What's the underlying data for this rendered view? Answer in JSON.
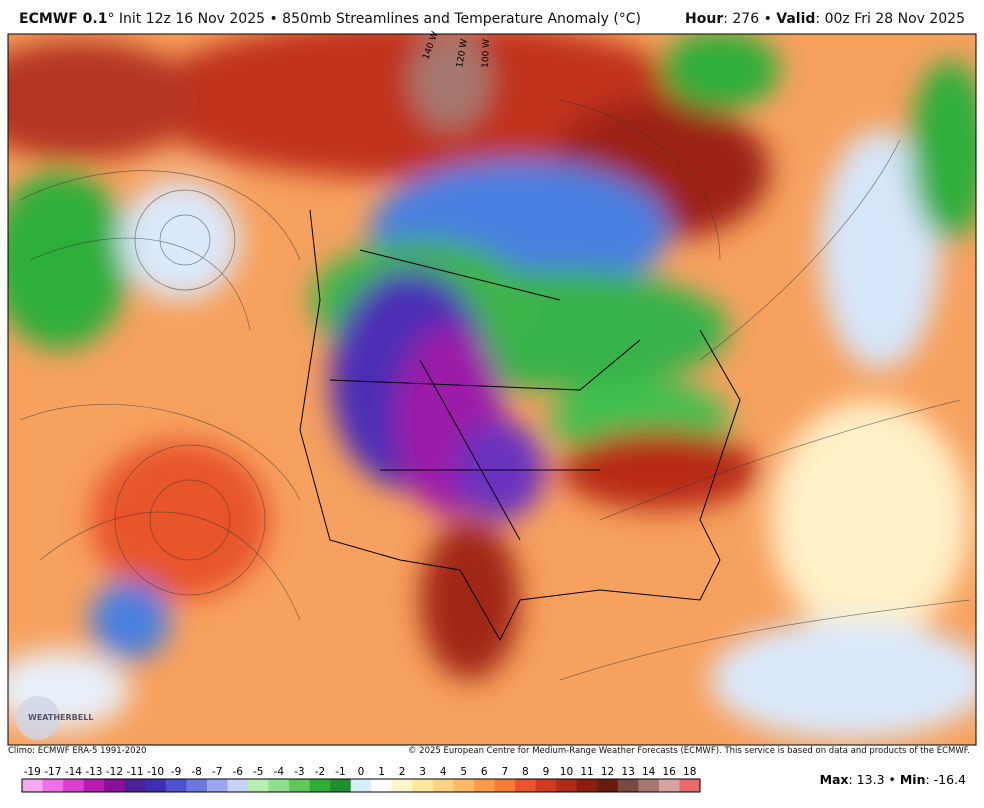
{
  "header": {
    "model": "ECMWF 0.1",
    "title_rest": "° Init 12z 16 Nov 2025 • 850mb Streamlines and Temperature Anomaly (°C)",
    "hour_label": "Hour",
    "hour_value": ": 276 • ",
    "valid_label": "Valid",
    "valid_value": ": 00z Fri 28 Nov 2025"
  },
  "map": {
    "meridian_labels": [
      "140 W",
      "120 W",
      "100 W"
    ],
    "logo": "WEATHERBELL"
  },
  "footer": {
    "climo": "Climo: ECMWF ERA-5 1991-2020",
    "credit": "© 2025 European Centre for Medium-Range Weather Forecasts (ECMWF). This service is based on data and products of the ECMWF."
  },
  "colorbar": {
    "labels": [
      "-19",
      "-17",
      "-14",
      "-13",
      "-12",
      "-11",
      "-10",
      "-9",
      "-8",
      "-7",
      "-6",
      "-5",
      "-4",
      "-3",
      "-2",
      "-1",
      "0",
      "1",
      "2",
      "3",
      "4",
      "5",
      "6",
      "7",
      "8",
      "9",
      "10",
      "11",
      "12",
      "13",
      "14",
      "16",
      "18"
    ],
    "colors": [
      "#f7a6f0",
      "#ef6fe6",
      "#d93fd0",
      "#b51cb3",
      "#8a0f9c",
      "#4b1f9a",
      "#3c2fb5",
      "#4f52cf",
      "#6c78e0",
      "#9aa6ee",
      "#c7d3f7",
      "#b6f0b0",
      "#8ee08a",
      "#5cc95a",
      "#2fae3a",
      "#1e8f2e",
      "#d9eefc",
      "#ffffff",
      "#fff6c8",
      "#ffe7a0",
      "#ffd280",
      "#ffb866",
      "#ff9a4d",
      "#f77a35",
      "#e8552a",
      "#d23a20",
      "#b02a17",
      "#8c1e10",
      "#6b1a0e",
      "#7a4a40",
      "#a57870",
      "#d6a3a0",
      "#e86a6a"
    ]
  },
  "extremes": {
    "max_label": "Max",
    "max_value": ": 13.3 • ",
    "min_label": "Min",
    "min_value": ": -16.4"
  }
}
